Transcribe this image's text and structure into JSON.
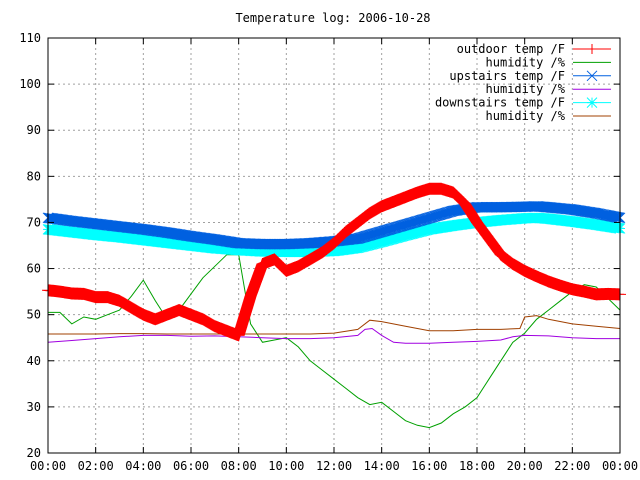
{
  "chart_data": {
    "type": "line",
    "title": "Temperature log: 2006-10-28",
    "xlabel": "",
    "ylabel": "",
    "xlim": [
      0,
      24
    ],
    "ylim": [
      20,
      110
    ],
    "grid": true,
    "legend_position": "top-right",
    "x_ticks": [
      "00:00",
      "02:00",
      "04:00",
      "06:00",
      "08:00",
      "10:00",
      "12:00",
      "14:00",
      "16:00",
      "18:00",
      "20:00",
      "22:00",
      "00:00"
    ],
    "y_ticks": [
      "20",
      "30",
      "40",
      "50",
      "60",
      "70",
      "80",
      "90",
      "100",
      "110"
    ],
    "series": [
      {
        "name": "outdoor temp /F",
        "color": "#ff0000",
        "marker": "plus",
        "x": [
          0,
          0.5,
          1,
          1.5,
          2,
          2.5,
          3,
          3.5,
          4,
          4.5,
          5,
          5.5,
          6,
          6.5,
          7,
          7.5,
          8,
          8.5,
          9,
          9.5,
          10,
          10.5,
          11,
          11.5,
          12,
          12.5,
          13,
          13.5,
          14,
          14.5,
          15,
          15.5,
          16,
          16.5,
          17,
          17.5,
          18,
          18.5,
          19,
          19.5,
          20,
          20.5,
          21,
          21.5,
          22,
          22.5,
          23,
          23.5,
          24
        ],
        "y": [
          55.3,
          55,
          54.6,
          54.5,
          53.8,
          53.8,
          53,
          51.5,
          50,
          49,
          50,
          51,
          50,
          49,
          47.5,
          46.5,
          45.5,
          54,
          61,
          62,
          59.5,
          60.5,
          62,
          63.5,
          65.5,
          68,
          70,
          72,
          73.5,
          74.5,
          75.5,
          76.5,
          77.3,
          77.3,
          76.5,
          74,
          70,
          66.5,
          63,
          61,
          59.5,
          58.3,
          57.2,
          56.3,
          55.5,
          55,
          54.4,
          54.5,
          54.4
        ]
      },
      {
        "name": "humidity /%",
        "color": "#00a000",
        "marker": "none",
        "x": [
          0,
          0.5,
          1,
          1.5,
          2,
          2.5,
          3,
          3.5,
          4,
          4.5,
          5,
          5.5,
          6,
          6.5,
          7,
          7.5,
          8,
          8.5,
          9,
          9.5,
          10,
          10.5,
          11,
          11.5,
          12,
          12.5,
          13,
          13.5,
          14,
          14.5,
          15,
          15.5,
          16,
          16.5,
          17,
          17.5,
          18,
          18.5,
          19,
          19.5,
          20,
          20.5,
          21,
          21.5,
          22,
          22.5,
          23,
          23.5,
          24
        ],
        "y": [
          50.5,
          50.5,
          48,
          49.5,
          49,
          50,
          51,
          54,
          57.5,
          53,
          49,
          51,
          54.5,
          58,
          60.5,
          63,
          63,
          48,
          44,
          44.5,
          45,
          43,
          40,
          38,
          36,
          34,
          32,
          30.5,
          31,
          29,
          27,
          26,
          25.5,
          26.5,
          28.5,
          30,
          32,
          36,
          40,
          44,
          46,
          49,
          51,
          53,
          55,
          56.5,
          56,
          53.5,
          51
        ]
      },
      {
        "name": "upstairs temp /F",
        "color": "#0060e0",
        "marker": "x",
        "x": [
          0,
          1,
          2,
          3,
          4,
          5,
          6,
          7,
          8,
          9,
          10,
          11,
          12,
          13,
          14,
          15,
          16,
          17,
          18,
          19,
          20,
          20.5,
          21,
          22,
          23,
          24
        ],
        "y": [
          71,
          70.3,
          69.7,
          69.1,
          68.5,
          67.8,
          67,
          66.3,
          65.5,
          65.3,
          65.3,
          65.5,
          65.9,
          66.5,
          68,
          69.5,
          71,
          72.5,
          73.3,
          73.3,
          73.4,
          73.5,
          73.3,
          72.8,
          72,
          71
        ]
      },
      {
        "name": "humidity /%",
        "color": "#a000e0",
        "marker": "none",
        "x": [
          0,
          1,
          2,
          3,
          4,
          5,
          6,
          7,
          8,
          9,
          10,
          11,
          12,
          13,
          13.3,
          13.6,
          14,
          14.5,
          15,
          16,
          17,
          18,
          19,
          19.5,
          20,
          21,
          22,
          23,
          24
        ],
        "y": [
          44,
          44.4,
          44.8,
          45.2,
          45.5,
          45.5,
          45.3,
          45.4,
          45.2,
          45,
          44.8,
          44.8,
          45,
          45.5,
          46.8,
          47,
          45.5,
          44,
          43.8,
          43.8,
          44,
          44.2,
          44.5,
          45.2,
          45.5,
          45.4,
          45,
          44.8,
          44.8
        ]
      },
      {
        "name": "downstairs temp /F",
        "color": "#00ffff",
        "marker": "star",
        "x": [
          0,
          1,
          2,
          3,
          4,
          5,
          6,
          7,
          8,
          9,
          10,
          11,
          12,
          13,
          14,
          15,
          16,
          17,
          18,
          19,
          20,
          20.5,
          21,
          22,
          23,
          24
        ],
        "y": [
          68.5,
          67.9,
          67.3,
          66.8,
          66.2,
          65.6,
          65,
          64.4,
          64,
          63.7,
          63.6,
          63.6,
          63.8,
          64.5,
          65.8,
          67.2,
          68.5,
          69.3,
          70,
          70.5,
          70.9,
          71,
          70.8,
          70.2,
          69.5,
          68.7
        ]
      },
      {
        "name": "humidity /%",
        "color": "#a04000",
        "marker": "none",
        "x": [
          0,
          1,
          2,
          3,
          4,
          5,
          6,
          7,
          8,
          9,
          10,
          11,
          12,
          13,
          13.5,
          14,
          15,
          16,
          17,
          18,
          19,
          19.8,
          20,
          20.5,
          21,
          22,
          23,
          24
        ],
        "y": [
          45.8,
          45.8,
          45.8,
          45.9,
          45.9,
          45.8,
          45.8,
          45.8,
          45.8,
          45.8,
          45.8,
          45.8,
          46,
          46.8,
          48.8,
          48.5,
          47.5,
          46.5,
          46.5,
          46.8,
          46.8,
          47,
          49.5,
          49.8,
          49,
          48,
          47.5,
          47
        ]
      }
    ]
  }
}
